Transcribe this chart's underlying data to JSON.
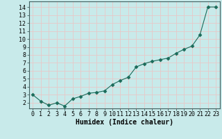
{
  "x": [
    0,
    1,
    2,
    3,
    4,
    5,
    6,
    7,
    8,
    9,
    10,
    11,
    12,
    13,
    14,
    15,
    16,
    17,
    18,
    19,
    20,
    21,
    22,
    23
  ],
  "y": [
    3.0,
    2.2,
    1.7,
    2.0,
    1.6,
    2.5,
    2.8,
    3.2,
    3.3,
    3.5,
    4.3,
    4.8,
    5.2,
    6.5,
    6.9,
    7.2,
    7.4,
    7.6,
    8.2,
    8.7,
    9.1,
    10.5,
    14.0,
    14.0
  ],
  "line_color": "#1a6b5a",
  "marker": "D",
  "marker_size": 2.5,
  "bg_color": "#c8eaea",
  "grid_color": "#e8c8c8",
  "xlabel": "Humidex (Indice chaleur)",
  "xlim": [
    -0.5,
    23.5
  ],
  "ylim": [
    1.3,
    14.7
  ],
  "yticks": [
    2,
    3,
    4,
    5,
    6,
    7,
    8,
    9,
    10,
    11,
    12,
    13,
    14
  ],
  "xticks": [
    0,
    1,
    2,
    3,
    4,
    5,
    6,
    7,
    8,
    9,
    10,
    11,
    12,
    13,
    14,
    15,
    16,
    17,
    18,
    19,
    20,
    21,
    22,
    23
  ],
  "tick_fontsize": 6,
  "xlabel_fontsize": 7,
  "spine_color": "#406060"
}
